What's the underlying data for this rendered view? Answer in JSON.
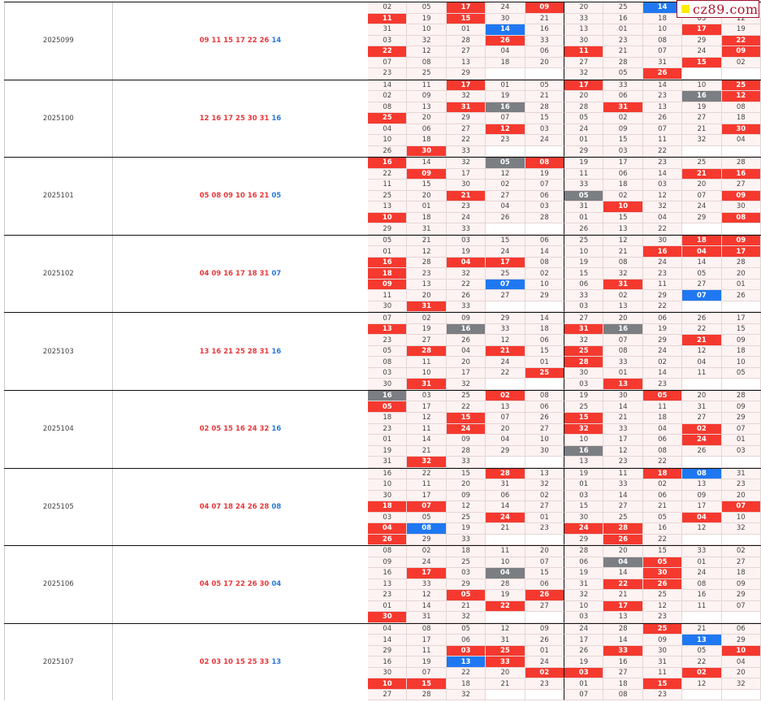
{
  "watermark": "cz89.com",
  "colors": {
    "red": "#f5392f",
    "blue": "#1f78f2",
    "gray": "#7b7e82"
  },
  "rows": [
    {
      "issue": "2025099",
      "reds": [
        "09",
        "11",
        "15",
        "17",
        "22",
        "26"
      ],
      "blue": "14",
      "grid": [
        [
          "02",
          "05",
          "17:r",
          "24",
          "09:r",
          "20",
          "25",
          "14:b",
          "",
          ""
        ],
        [
          "11:r",
          "19",
          "15:r",
          "30",
          "21",
          "33",
          "16",
          "18",
          "03",
          "12"
        ],
        [
          "31",
          "10",
          "01",
          "14:b",
          "16",
          "13",
          "01",
          "10",
          "17:r",
          "19"
        ],
        [
          "03",
          "32",
          "28",
          "26:r",
          "33",
          "30",
          "23",
          "08",
          "29",
          "22:r"
        ],
        [
          "22:r",
          "12",
          "27",
          "04",
          "06",
          "11:r",
          "21",
          "07",
          "24",
          "09:r"
        ],
        [
          "07",
          "08",
          "13",
          "18",
          "20",
          "27",
          "28",
          "31",
          "15:r",
          "02"
        ],
        [
          "23",
          "25",
          "29",
          "",
          "",
          "32",
          "05",
          "26:r",
          "",
          ""
        ]
      ]
    },
    {
      "issue": "2025100",
      "reds": [
        "12",
        "16",
        "17",
        "25",
        "30",
        "31"
      ],
      "blue": "16",
      "grid": [
        [
          "14",
          "11",
          "17:r",
          "01",
          "05",
          "17:r",
          "33",
          "14",
          "10",
          "25:r"
        ],
        [
          "02",
          "09",
          "32",
          "19",
          "21",
          "20",
          "06",
          "23",
          "16:g",
          "12:r"
        ],
        [
          "08",
          "13",
          "31:r",
          "16:g",
          "28",
          "28",
          "31:r",
          "13",
          "19",
          "08"
        ],
        [
          "25:r",
          "20",
          "29",
          "07",
          "15",
          "05",
          "02",
          "26",
          "27",
          "18"
        ],
        [
          "04",
          "06",
          "27",
          "12:r",
          "03",
          "24",
          "09",
          "07",
          "21",
          "30:r"
        ],
        [
          "10",
          "18",
          "22",
          "23",
          "24",
          "01",
          "15",
          "11",
          "32",
          "04"
        ],
        [
          "26",
          "30:r",
          "33",
          "",
          "",
          "29",
          "03",
          "22",
          "",
          ""
        ]
      ]
    },
    {
      "issue": "2025101",
      "reds": [
        "05",
        "08",
        "09",
        "10",
        "16",
        "21"
      ],
      "blue": "05",
      "grid": [
        [
          "16:r",
          "14",
          "32",
          "05:g",
          "08:r",
          "19",
          "17",
          "23",
          "25",
          "28"
        ],
        [
          "22",
          "09:r",
          "17",
          "12",
          "19",
          "11",
          "06",
          "14",
          "21:r",
          "16:r"
        ],
        [
          "11",
          "15",
          "30",
          "02",
          "07",
          "33",
          "18",
          "03",
          "20",
          "27"
        ],
        [
          "25",
          "20",
          "21:r",
          "27",
          "06",
          "05:g",
          "02",
          "12",
          "07",
          "09:r"
        ],
        [
          "13",
          "01",
          "23",
          "04",
          "03",
          "31",
          "10:r",
          "32",
          "24",
          "30"
        ],
        [
          "10:r",
          "18",
          "24",
          "26",
          "28",
          "01",
          "15",
          "04",
          "29",
          "08:r"
        ],
        [
          "29",
          "31",
          "33",
          "",
          "",
          "26",
          "13",
          "22",
          "",
          ""
        ]
      ]
    },
    {
      "issue": "2025102",
      "reds": [
        "04",
        "09",
        "16",
        "17",
        "18",
        "31"
      ],
      "blue": "07",
      "grid": [
        [
          "05",
          "21",
          "03",
          "15",
          "06",
          "25",
          "12",
          "30",
          "18:r",
          "09:r"
        ],
        [
          "01",
          "12",
          "19",
          "24",
          "14",
          "10",
          "21",
          "16:r",
          "04:r",
          "17:r"
        ],
        [
          "16:r",
          "28",
          "04:r",
          "17:r",
          "08",
          "19",
          "08",
          "24",
          "14",
          "28"
        ],
        [
          "18:r",
          "23",
          "32",
          "25",
          "02",
          "15",
          "32",
          "23",
          "05",
          "20"
        ],
        [
          "09:r",
          "13",
          "22",
          "07:b",
          "10",
          "06",
          "31:r",
          "11",
          "27",
          "01"
        ],
        [
          "11",
          "20",
          "26",
          "27",
          "29",
          "33",
          "02",
          "29",
          "07:b",
          "26"
        ],
        [
          "30",
          "31:r",
          "33",
          "",
          "",
          "03",
          "13",
          "22",
          "",
          ""
        ]
      ]
    },
    {
      "issue": "2025103",
      "reds": [
        "13",
        "16",
        "21",
        "25",
        "28",
        "31"
      ],
      "blue": "16",
      "grid": [
        [
          "07",
          "02",
          "09",
          "29",
          "14",
          "27",
          "20",
          "06",
          "26",
          "17"
        ],
        [
          "13:r",
          "19",
          "16:g",
          "33",
          "18",
          "31:r",
          "16:g",
          "19",
          "22",
          "15"
        ],
        [
          "23",
          "27",
          "26",
          "12",
          "06",
          "32",
          "07",
          "29",
          "21:r",
          "09"
        ],
        [
          "05",
          "28:r",
          "04",
          "21:r",
          "15",
          "25:r",
          "08",
          "24",
          "12",
          "18"
        ],
        [
          "08",
          "11",
          "20",
          "24",
          "01",
          "28:r",
          "33",
          "02",
          "04",
          "10"
        ],
        [
          "03",
          "10",
          "17",
          "22",
          "25:r",
          "30",
          "01",
          "14",
          "11",
          "05"
        ],
        [
          "30",
          "31:r",
          "32",
          "",
          "",
          "03",
          "13:r",
          "23",
          "",
          ""
        ]
      ]
    },
    {
      "issue": "2025104",
      "reds": [
        "02",
        "05",
        "15",
        "16",
        "24",
        "32"
      ],
      "blue": "16",
      "grid": [
        [
          "16:g",
          "03",
          "25",
          "02:r",
          "08",
          "19",
          "30",
          "05:r",
          "20",
          "28"
        ],
        [
          "05:r",
          "17",
          "22",
          "13",
          "06",
          "25",
          "14",
          "11",
          "31",
          "09"
        ],
        [
          "18",
          "12",
          "15:r",
          "07",
          "26",
          "15:r",
          "21",
          "18",
          "27",
          "29"
        ],
        [
          "23",
          "11",
          "24:r",
          "20",
          "27",
          "32:r",
          "33",
          "04",
          "02:r",
          "07"
        ],
        [
          "01",
          "14",
          "09",
          "04",
          "10",
          "10",
          "17",
          "06",
          "24:r",
          "01"
        ],
        [
          "19",
          "21",
          "28",
          "29",
          "30",
          "16:g",
          "12",
          "08",
          "26",
          "03"
        ],
        [
          "31",
          "32:r",
          "33",
          "",
          "",
          "13",
          "23",
          "22",
          "",
          ""
        ]
      ]
    },
    {
      "issue": "2025105",
      "reds": [
        "04",
        "07",
        "18",
        "24",
        "26",
        "28"
      ],
      "blue": "08",
      "grid": [
        [
          "16",
          "22",
          "15",
          "28:r",
          "13",
          "19",
          "11",
          "18:r",
          "08:b",
          "31"
        ],
        [
          "10",
          "11",
          "20",
          "31",
          "32",
          "01",
          "33",
          "02",
          "13",
          "23"
        ],
        [
          "30",
          "17",
          "09",
          "06",
          "02",
          "03",
          "14",
          "06",
          "09",
          "20"
        ],
        [
          "18:r",
          "07:r",
          "12",
          "14",
          "27",
          "15",
          "27",
          "21",
          "17",
          "07:r"
        ],
        [
          "03",
          "05",
          "25",
          "24:r",
          "01",
          "30",
          "25",
          "05",
          "04:r",
          "10"
        ],
        [
          "04:r",
          "08:b",
          "19",
          "21",
          "23",
          "24:r",
          "28:r",
          "16",
          "12",
          "32"
        ],
        [
          "26:r",
          "29",
          "33",
          "",
          "",
          "29",
          "26:r",
          "22",
          "",
          ""
        ]
      ]
    },
    {
      "issue": "2025106",
      "reds": [
        "04",
        "05",
        "17",
        "22",
        "26",
        "30"
      ],
      "blue": "04",
      "grid": [
        [
          "08",
          "02",
          "18",
          "11",
          "20",
          "28",
          "20",
          "15",
          "33",
          "02"
        ],
        [
          "09",
          "24",
          "25",
          "10",
          "07",
          "06",
          "04:g",
          "05:r",
          "01",
          "27"
        ],
        [
          "16",
          "17:r",
          "03",
          "04:g",
          "15",
          "19",
          "14",
          "30:r",
          "24",
          "18"
        ],
        [
          "13",
          "33",
          "29",
          "28",
          "06",
          "31",
          "22:r",
          "26:r",
          "08",
          "09"
        ],
        [
          "23",
          "12",
          "05:r",
          "19",
          "26:r",
          "32",
          "21",
          "25",
          "16",
          "29"
        ],
        [
          "01",
          "14",
          "21",
          "22:r",
          "27",
          "10",
          "17:r",
          "12",
          "11",
          "07"
        ],
        [
          "30:r",
          "31",
          "32",
          "",
          "",
          "03",
          "13",
          "23",
          "",
          ""
        ]
      ]
    },
    {
      "issue": "2025107",
      "reds": [
        "02",
        "03",
        "10",
        "15",
        "25",
        "33"
      ],
      "blue": "13",
      "grid": [
        [
          "04",
          "08",
          "05",
          "12",
          "09",
          "24",
          "28",
          "25:r",
          "21",
          "06"
        ],
        [
          "14",
          "17",
          "06",
          "31",
          "26",
          "17",
          "14",
          "09",
          "13:b",
          "29"
        ],
        [
          "29",
          "11",
          "03:r",
          "25:r",
          "01",
          "26",
          "33:r",
          "30",
          "05",
          "10:r"
        ],
        [
          "16",
          "19",
          "13:b",
          "33:r",
          "24",
          "19",
          "16",
          "31",
          "22",
          "04"
        ],
        [
          "30",
          "07",
          "22",
          "20",
          "02:r",
          "03:r",
          "27",
          "11",
          "02:r",
          "20"
        ],
        [
          "10:r",
          "15:r",
          "18",
          "21",
          "23",
          "01",
          "18",
          "15:r",
          "12",
          "32"
        ],
        [
          "27",
          "28",
          "32",
          "",
          "",
          "07",
          "08",
          "23",
          "",
          ""
        ]
      ]
    }
  ]
}
